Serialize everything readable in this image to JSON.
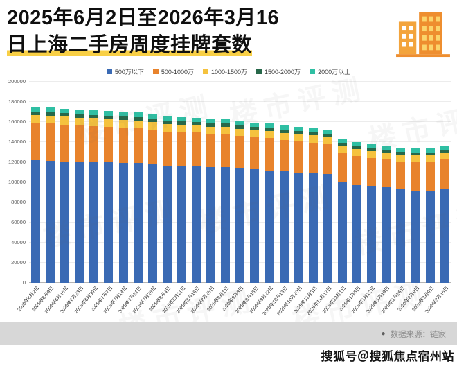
{
  "header": {
    "title_line1": "2025年6月2日至2026年3月16",
    "title_line2": "日上海二手房周度挂牌套数"
  },
  "chart_data": {
    "type": "bar",
    "stacked": true,
    "title": "2025年6月2日至2026年3月16日上海二手房周度挂牌套数",
    "xlabel": "",
    "ylabel": "",
    "ylim": [
      0,
      200000
    ],
    "grid": true,
    "legend_position": "top",
    "yticks": [
      0,
      20000,
      40000,
      60000,
      80000,
      100000,
      120000,
      140000,
      160000,
      180000,
      200000
    ],
    "categories": [
      "2025年6月2日",
      "2025年6月9日",
      "2025年6月16日",
      "2025年6月23日",
      "2025年6月30日",
      "2025年7月7日",
      "2025年7月14日",
      "2025年7月21日",
      "2025年7月28日",
      "2025年8月4日",
      "2025年8月11日",
      "2025年8月18日",
      "2025年8月25日",
      "2025年9月1日",
      "2025年9月8日",
      "2025年9月15日",
      "2025年9月22日",
      "2025年10月13日",
      "2025年10月20日",
      "2025年11月3日",
      "2025年11月17日",
      "2025年12月1日",
      "2026年1月5日",
      "2026年1月12日",
      "2026年1月19日",
      "2026年1月26日",
      "2026年2月9日",
      "2026年3月9日",
      "2026年3月16日"
    ],
    "series": [
      {
        "name": "500万以下",
        "color": "#3a6ab4",
        "values": [
          122000,
          121500,
          121000,
          120500,
          120000,
          120000,
          119500,
          119000,
          118000,
          116500,
          116000,
          116000,
          115000,
          115000,
          113500,
          113000,
          112000,
          111000,
          110000,
          109000,
          108000,
          100000,
          97000,
          96000,
          95000,
          93000,
          92000,
          92000,
          94000
        ]
      },
      {
        "name": "500-1000万",
        "color": "#e8832c",
        "values": [
          37000,
          37000,
          36500,
          36000,
          36000,
          35500,
          35000,
          35000,
          34500,
          34000,
          34000,
          33500,
          33000,
          33000,
          32500,
          32000,
          32000,
          31000,
          31000,
          30500,
          30000,
          29500,
          29000,
          28500,
          28000,
          28000,
          28000,
          28000,
          28500
        ]
      },
      {
        "name": "1000-1500万",
        "color": "#f5c23e",
        "values": [
          8000,
          8000,
          8000,
          7900,
          7900,
          7800,
          7800,
          7700,
          7700,
          7600,
          7600,
          7500,
          7500,
          7400,
          7400,
          7300,
          7300,
          7200,
          7100,
          7100,
          7000,
          7000,
          6900,
          6900,
          6800,
          6800,
          6800,
          6800,
          6900
        ]
      },
      {
        "name": "1500-2000万",
        "color": "#27684a",
        "values": [
          3200,
          3200,
          3150,
          3150,
          3100,
          3100,
          3050,
          3050,
          3000,
          3000,
          3000,
          2950,
          2950,
          2900,
          2900,
          2900,
          2850,
          2850,
          2800,
          2800,
          2800,
          2750,
          2750,
          2700,
          2700,
          2700,
          2700,
          2700,
          2750
        ]
      },
      {
        "name": "2000万以上",
        "color": "#2fbfa3",
        "values": [
          4800,
          4800,
          4750,
          4750,
          4700,
          4700,
          4650,
          4650,
          4600,
          4600,
          4550,
          4550,
          4500,
          4500,
          4450,
          4450,
          4400,
          4350,
          4300,
          4300,
          4250,
          4200,
          4200,
          4150,
          4150,
          4100,
          4100,
          4100,
          4150
        ]
      }
    ]
  },
  "footer": {
    "source_bullet": "●",
    "source": "数据来源：链家",
    "watermark": "搜狐号＠搜狐焦点宿州站"
  },
  "watermark_text": "楼市评测",
  "colors": {
    "highlight": "#f8cf45",
    "band": "#d7d7d7",
    "icon_orange": "#ee8e2f",
    "icon_light_orange": "#f3a43c"
  }
}
